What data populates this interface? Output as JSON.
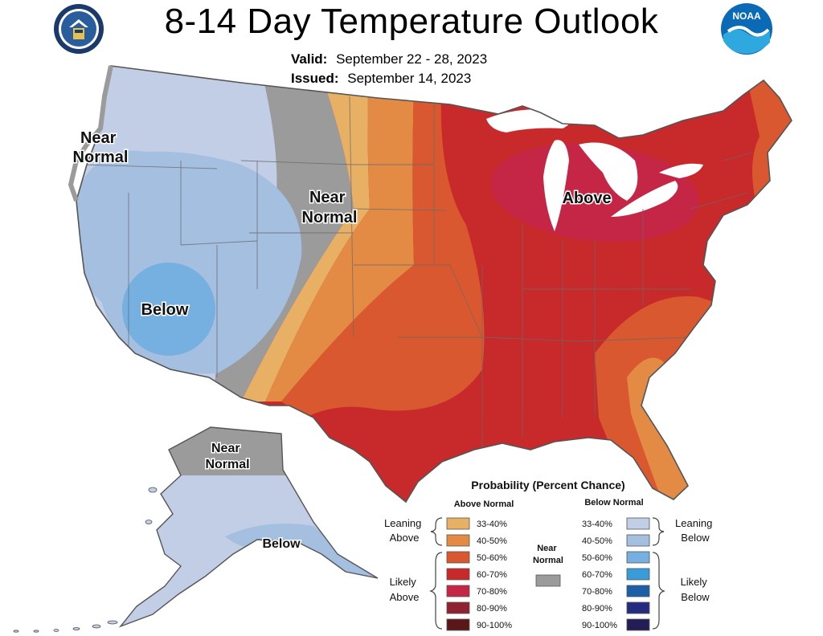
{
  "header": {
    "title": "8-14 Day Temperature Outlook",
    "valid_label": "Valid:",
    "valid_value": "September 22 - 28, 2023",
    "issued_label": "Issued:",
    "issued_value": "September 14, 2023"
  },
  "logos": {
    "left": "Department of Commerce seal",
    "right_text": "NOAA"
  },
  "map_labels": {
    "west_near_normal": [
      "Near",
      "Normal"
    ],
    "central_near_normal": [
      "Near",
      "Normal"
    ],
    "below_southwest": "Below",
    "above_great_lakes": "Above",
    "alaska_near_normal": [
      "Near",
      "Normal"
    ],
    "alaska_below": "Below"
  },
  "legend": {
    "title": "Probability (Percent Chance)",
    "above_header": "Above Normal",
    "below_header": "Below Normal",
    "near_header": [
      "Near",
      "Normal"
    ],
    "above_items": [
      {
        "label": "33-40%",
        "color": "#e8b065"
      },
      {
        "label": "40-50%",
        "color": "#e38a45"
      },
      {
        "label": "50-60%",
        "color": "#d9582f"
      },
      {
        "label": "60-70%",
        "color": "#c8292a"
      },
      {
        "label": "70-80%",
        "color": "#c62645"
      },
      {
        "label": "80-90%",
        "color": "#8f2230"
      },
      {
        "label": "90-100%",
        "color": "#5a1618"
      }
    ],
    "below_items": [
      {
        "label": "33-40%",
        "color": "#c2cde6"
      },
      {
        "label": "40-50%",
        "color": "#a4bfe0"
      },
      {
        "label": "50-60%",
        "color": "#75b0e0"
      },
      {
        "label": "60-70%",
        "color": "#3a9bd9"
      },
      {
        "label": "70-80%",
        "color": "#1c5fa8"
      },
      {
        "label": "80-90%",
        "color": "#252b7e"
      },
      {
        "label": "90-100%",
        "color": "#221d55"
      }
    ],
    "near_color": "#9b9b9b",
    "groups": {
      "leaning_above": [
        "Leaning",
        "Above"
      ],
      "likely_above": [
        "Likely",
        "Above"
      ],
      "leaning_below": [
        "Leaning",
        "Below"
      ],
      "likely_below": [
        "Likely",
        "Below"
      ]
    }
  },
  "colors": {
    "near_normal": "#9b9b9b",
    "water": "#ffffff",
    "border": "#666666"
  }
}
